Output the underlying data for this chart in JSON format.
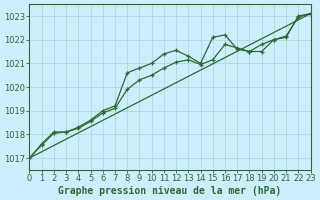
{
  "title": "Graphe pression niveau de la mer (hPa)",
  "background_color": "#cceeff",
  "line_color": "#2d6a2d",
  "x_min": 0,
  "x_max": 23,
  "y_min": 1016.5,
  "y_max": 1023.5,
  "y_ticks": [
    1017,
    1018,
    1019,
    1020,
    1021,
    1022,
    1023
  ],
  "x_ticks": [
    0,
    1,
    2,
    3,
    4,
    5,
    6,
    7,
    8,
    9,
    10,
    11,
    12,
    13,
    14,
    15,
    16,
    17,
    18,
    19,
    20,
    21,
    22,
    23
  ],
  "series1_x": [
    0,
    1,
    2,
    3,
    4,
    5,
    6,
    7,
    8,
    9,
    10,
    11,
    12,
    13,
    14,
    15,
    16,
    17,
    18,
    19,
    20,
    21,
    22,
    23
  ],
  "series1_y": [
    1017.0,
    1017.6,
    1018.1,
    1018.1,
    1018.3,
    1018.6,
    1019.0,
    1019.2,
    1020.6,
    1020.8,
    1021.0,
    1021.4,
    1021.55,
    1021.3,
    1021.0,
    1022.1,
    1022.2,
    1021.6,
    1021.5,
    1021.5,
    1022.0,
    1022.1,
    1023.0,
    1023.1
  ],
  "series2_x": [
    0,
    1,
    2,
    3,
    4,
    5,
    6,
    7,
    8,
    9,
    10,
    11,
    12,
    13,
    14,
    15,
    16,
    17,
    18,
    19,
    20,
    21,
    22,
    23
  ],
  "series2_y": [
    1017.0,
    1017.55,
    1018.05,
    1018.1,
    1018.25,
    1018.55,
    1018.9,
    1019.1,
    1019.9,
    1020.3,
    1020.5,
    1020.8,
    1021.05,
    1021.15,
    1020.95,
    1021.15,
    1021.8,
    1021.65,
    1021.5,
    1021.8,
    1022.0,
    1022.15,
    1022.95,
    1023.1
  ],
  "series3_x": [
    0,
    23
  ],
  "series3_y": [
    1017.0,
    1023.1
  ],
  "tick_fontsize": 6,
  "title_fontsize": 7
}
